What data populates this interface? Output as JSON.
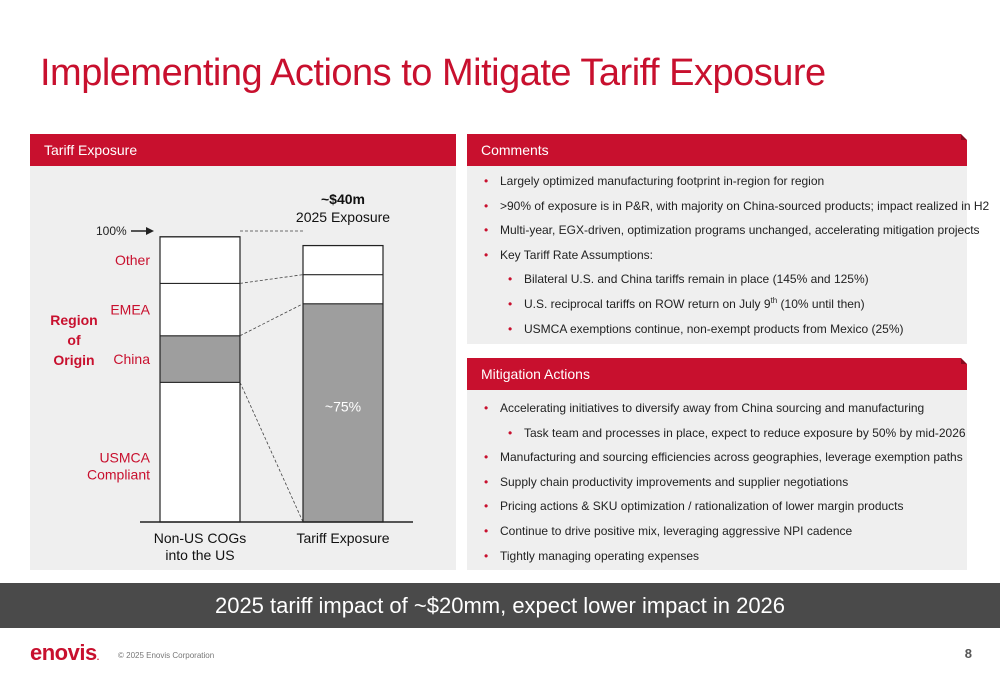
{
  "title": "Implementing Actions to Mitigate Tariff Exposure",
  "left_panel": {
    "header": "Tariff Exposure"
  },
  "chart_data": {
    "type": "bar",
    "stacked": true,
    "categories": [
      "Non-US COGs into the US",
      "Tariff Exposure"
    ],
    "category_labels": [
      [
        "Non-US COGs",
        "into the US"
      ],
      [
        "Tariff Exposure"
      ]
    ],
    "segments": [
      "USMCA Compliant",
      "China",
      "EMEA",
      "Other"
    ],
    "segment_labels": [
      [
        "USMCA",
        "Compliant"
      ],
      [
        "China"
      ],
      [
        "EMEA"
      ],
      [
        "Other"
      ]
    ],
    "segment_colors": [
      "#ffffff",
      "#9e9e9e",
      "#ffffff",
      "#ffffff"
    ],
    "series": [
      {
        "name": "USMCA Compliant",
        "values": [
          48,
          0
        ]
      },
      {
        "name": "China",
        "values": [
          16,
          75
        ]
      },
      {
        "name": "EMEA",
        "values": [
          18,
          10
        ]
      },
      {
        "name": "Other",
        "values": [
          16,
          10
        ]
      }
    ],
    "ylim": [
      0,
      100
    ],
    "marker_label": "100%",
    "y_axis_title": [
      "Region",
      "of",
      "Origin"
    ],
    "bar_annotation": "~75%",
    "top_label": {
      "value": "~$40m",
      "subtitle": "2025 Exposure"
    }
  },
  "comments": {
    "header": "Comments",
    "items": [
      {
        "text": "Largely optimized manufacturing footprint in-region for region",
        "level": 1
      },
      {
        "text": ">90% of exposure is in P&R, with majority on China-sourced products; impact realized in H2",
        "level": 1
      },
      {
        "text": "Multi-year, EGX-driven, optimization programs unchanged, accelerating mitigation projects",
        "level": 1
      },
      {
        "text": "Key Tariff Rate Assumptions:",
        "level": 1
      },
      {
        "text": "Bilateral U.S. and China tariffs remain in place (145% and 125%)",
        "level": 2
      },
      {
        "text": "U.S. reciprocal tariffs on ROW return on July 9",
        "sup": "th",
        "tail": " (10% until then)",
        "level": 2
      },
      {
        "text": "USMCA exemptions continue, non-exempt products from Mexico (25%)",
        "level": 2
      }
    ]
  },
  "mitigation": {
    "header": "Mitigation Actions",
    "items": [
      {
        "text": "Accelerating initiatives to diversify away from China sourcing and manufacturing",
        "level": 1
      },
      {
        "text": "Task team and processes in place, expect to reduce exposure by 50% by mid-2026",
        "level": 2
      },
      {
        "text": "Manufacturing and sourcing efficiencies across geographies, leverage exemption paths",
        "level": 1
      },
      {
        "text": "Supply chain productivity improvements and supplier negotiations",
        "level": 1
      },
      {
        "text": "Pricing actions & SKU optimization / rationalization of lower margin products",
        "level": 1
      },
      {
        "text": "Continue to drive positive mix, leveraging aggressive NPI cadence",
        "level": 1
      },
      {
        "text": "Tightly managing operating expenses",
        "level": 1
      }
    ]
  },
  "banner": "2025 tariff impact of ~$20mm, expect lower impact in 2026",
  "footer": {
    "logo": "enovis",
    "logo_mark": ".",
    "copyright": "© 2025 Enovis Corporation",
    "page_number": "8"
  },
  "colors": {
    "brand_red": "#c8102e",
    "panel_bg": "#efefef",
    "banner_bg": "#4a4a4a",
    "china_fill": "#9e9e9e"
  }
}
